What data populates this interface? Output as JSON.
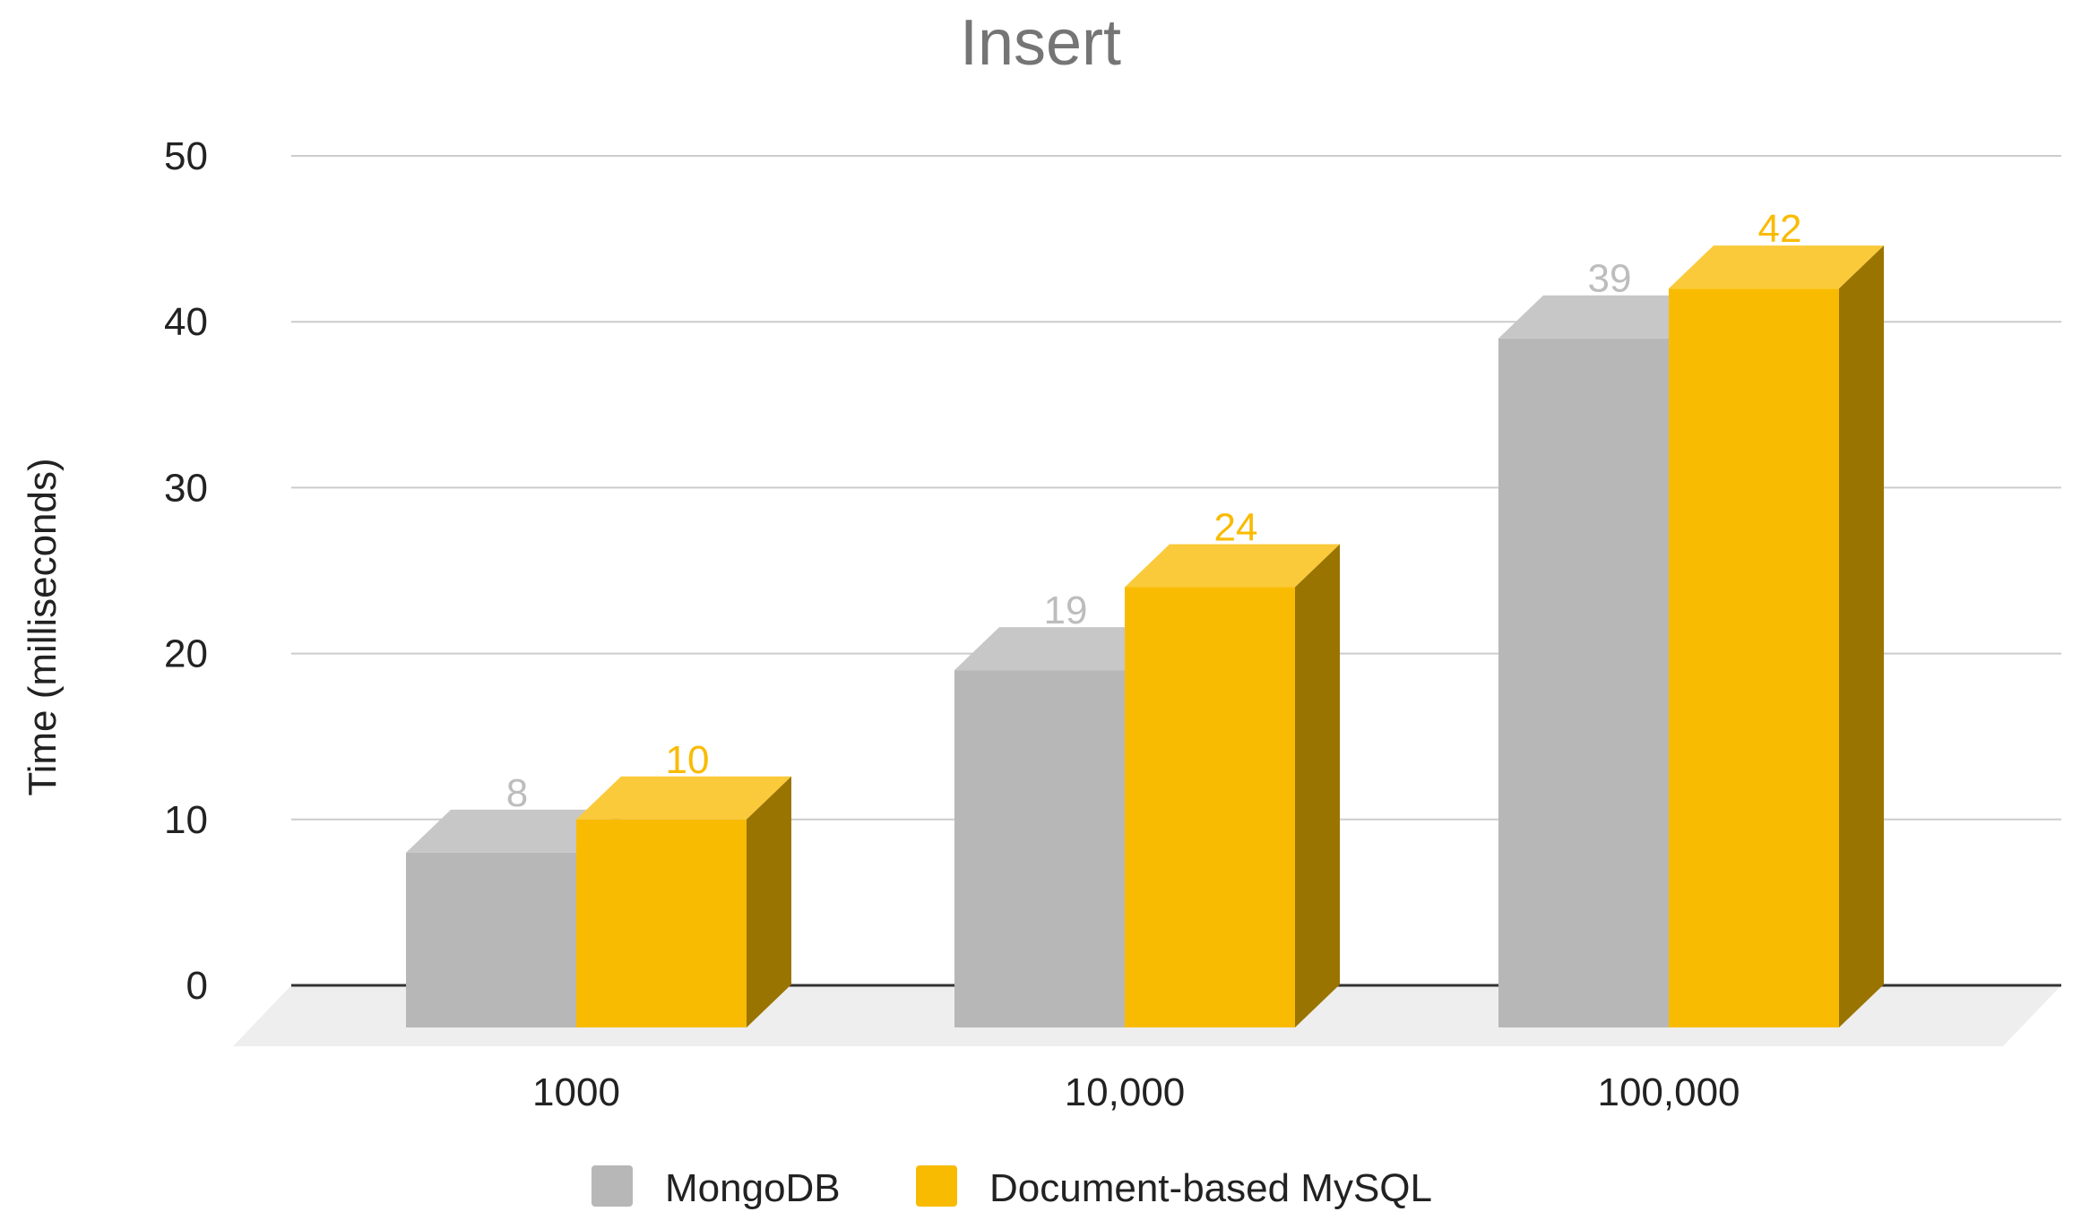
{
  "chart_data": {
    "type": "bar",
    "style": "3d-column",
    "title": "Insert",
    "xlabel": "",
    "ylabel": "Time (milliseconds)",
    "ylim": [
      0,
      50
    ],
    "yticks": [
      0,
      10,
      20,
      30,
      40,
      50
    ],
    "grid": true,
    "legend_position": "bottom",
    "categories": [
      "1000",
      "10,000",
      "100,000"
    ],
    "series": [
      {
        "name": "MongoDB",
        "values": [
          8,
          19,
          39
        ],
        "color": "#b7b7b7",
        "label_color": "#bdbdbd"
      },
      {
        "name": "Document-based MySQL",
        "values": [
          10,
          24,
          42
        ],
        "color": "#f9bb02",
        "label_color": "#f9bb02"
      }
    ]
  }
}
